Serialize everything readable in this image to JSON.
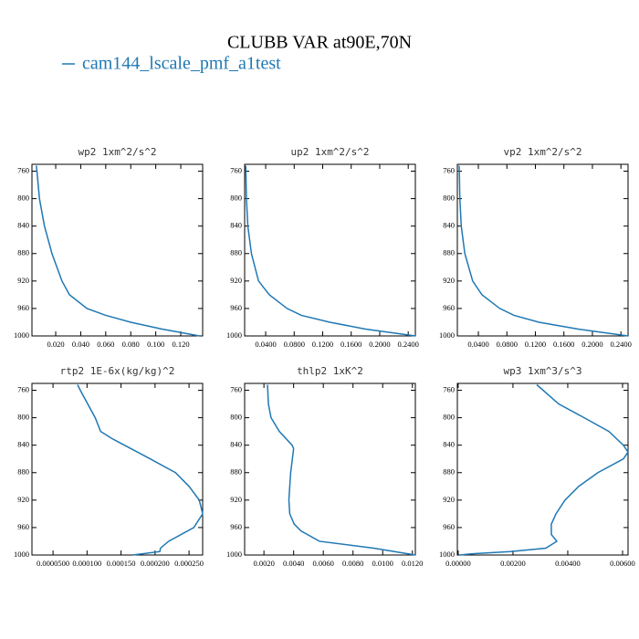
{
  "title": "CLUBB VAR at90E,70N",
  "chart_data": [
    {
      "type": "line",
      "title": "wp2  1xm^2/s^2",
      "xlim": [
        0.001,
        0.1375
      ],
      "ylim": [
        1000,
        750
      ],
      "xticks": [
        {
          "value": 0.02,
          "label": "0.020"
        },
        {
          "value": 0.04,
          "label": "0.040"
        },
        {
          "value": 0.06,
          "label": "0.060"
        },
        {
          "value": 0.08,
          "label": "0.080"
        },
        {
          "value": 0.1,
          "label": "0.100"
        },
        {
          "value": 0.12,
          "label": "0.120"
        }
      ],
      "yticks": [
        760,
        800,
        840,
        880,
        920,
        960,
        1000
      ],
      "y": [
        752,
        760,
        800,
        840,
        880,
        920,
        940,
        960,
        970,
        980,
        990,
        1000
      ],
      "series": [
        {
          "name": "cam144_lscale_pmf_a1test",
          "color": "#1f78b4",
          "values": [
            0.0045,
            0.005,
            0.007,
            0.011,
            0.017,
            0.025,
            0.031,
            0.045,
            0.06,
            0.08,
            0.105,
            0.135
          ]
        }
      ]
    },
    {
      "type": "line",
      "title": "up2  1xm^2/s^2",
      "xlim": [
        0.0105,
        0.25
      ],
      "ylim": [
        1000,
        750
      ],
      "xticks": [
        {
          "value": 0.04,
          "label": "0.0400"
        },
        {
          "value": 0.08,
          "label": "0.0800"
        },
        {
          "value": 0.12,
          "label": "0.1200"
        },
        {
          "value": 0.16,
          "label": "0.1600"
        },
        {
          "value": 0.2,
          "label": "0.2000"
        },
        {
          "value": 0.24,
          "label": "0.2400"
        }
      ],
      "yticks": [
        760,
        800,
        840,
        880,
        920,
        960,
        1000
      ],
      "y": [
        752,
        760,
        800,
        840,
        880,
        920,
        940,
        960,
        970,
        980,
        990,
        1000
      ],
      "series": [
        {
          "color": "#1f78b4",
          "values": [
            0.012,
            0.0122,
            0.013,
            0.015,
            0.02,
            0.03,
            0.045,
            0.07,
            0.09,
            0.13,
            0.18,
            0.25
          ]
        }
      ]
    },
    {
      "type": "line",
      "title": "vp2  1xm^2/s^2",
      "xlim": [
        0.0105,
        0.25
      ],
      "ylim": [
        1000,
        750
      ],
      "xticks": [
        {
          "value": 0.04,
          "label": "0.0400"
        },
        {
          "value": 0.08,
          "label": "0.0800"
        },
        {
          "value": 0.12,
          "label": "0.1200"
        },
        {
          "value": 0.16,
          "label": "0.1600"
        },
        {
          "value": 0.2,
          "label": "0.2000"
        },
        {
          "value": 0.24,
          "label": "0.2400"
        }
      ],
      "yticks": [
        760,
        800,
        840,
        880,
        920,
        960,
        1000
      ],
      "y": [
        752,
        760,
        800,
        840,
        880,
        920,
        940,
        960,
        970,
        980,
        990,
        1000
      ],
      "series": [
        {
          "color": "#1f78b4",
          "values": [
            0.013,
            0.0133,
            0.014,
            0.016,
            0.021,
            0.032,
            0.045,
            0.07,
            0.09,
            0.125,
            0.18,
            0.25
          ]
        }
      ]
    },
    {
      "type": "line",
      "title": "rtp2  1E-6x(kg/kg)^2",
      "xlim": [
        1.9e-05,
        0.00027
      ],
      "ylim": [
        1000,
        750
      ],
      "xticks": [
        {
          "value": 5e-05,
          "label": "0.0000500"
        },
        {
          "value": 0.0001,
          "label": "0.000100"
        },
        {
          "value": 0.00015,
          "label": "0.000150"
        },
        {
          "value": 0.0002,
          "label": "0.000200"
        },
        {
          "value": 0.00025,
          "label": "0.000250"
        }
      ],
      "yticks": [
        760,
        800,
        840,
        880,
        920,
        960,
        1000
      ],
      "y": [
        752,
        760,
        800,
        820,
        830,
        860,
        880,
        900,
        920,
        940,
        960,
        980,
        990,
        995,
        1000
      ],
      "series": [
        {
          "color": "#1f78b4",
          "values": [
            8.61e-05,
            9.01e-05,
            0.000112,
            0.00012,
            0.000136,
            0.000193,
            0.00023,
            0.00025,
            0.000265,
            0.00027,
            0.000257,
            0.00022,
            0.000208,
            0.000207,
            0.000167
          ]
        }
      ]
    },
    {
      "type": "line",
      "title": "thlp2  1xK^2",
      "xlim": [
        0.0007,
        0.0122
      ],
      "ylim": [
        1000,
        750
      ],
      "xticks": [
        {
          "value": 0.002,
          "label": "0.0020"
        },
        {
          "value": 0.004,
          "label": "0.0040"
        },
        {
          "value": 0.006,
          "label": "0.0060"
        },
        {
          "value": 0.008,
          "label": "0.0080"
        },
        {
          "value": 0.01,
          "label": "0.0100"
        },
        {
          "value": 0.012,
          "label": "0.0120"
        }
      ],
      "yticks": [
        760,
        800,
        840,
        880,
        920,
        960,
        1000
      ],
      "y": [
        752,
        780,
        800,
        820,
        840,
        845,
        880,
        920,
        940,
        955,
        965,
        980,
        990,
        1000
      ],
      "series": [
        {
          "color": "#1f78b4",
          "values": [
            0.00224,
            0.0023,
            0.00248,
            0.00304,
            0.0039,
            0.004,
            0.0038,
            0.00368,
            0.00374,
            0.00404,
            0.0045,
            0.00574,
            0.0094,
            0.0122
          ]
        }
      ]
    },
    {
      "type": "line",
      "title": "wp3  1xm^3/s^3",
      "xlim": [
        -3e-05,
        0.0062
      ],
      "ylim": [
        1000,
        750
      ],
      "xticks": [
        {
          "value": 0,
          "label": "0.00000"
        },
        {
          "value": 0.002,
          "label": "0.00200"
        },
        {
          "value": 0.004,
          "label": "0.00400"
        },
        {
          "value": 0.006,
          "label": "0.00600"
        }
      ],
      "yticks": [
        760,
        800,
        840,
        880,
        920,
        960,
        1000
      ],
      "y": [
        752,
        780,
        800,
        820,
        840,
        850,
        860,
        880,
        900,
        920,
        940,
        955,
        970,
        980,
        990,
        995,
        998,
        1000
      ],
      "series": [
        {
          "color": "#1f78b4",
          "values": [
            0.00287,
            0.00367,
            0.0046,
            0.0055,
            0.00603,
            0.0062,
            0.00603,
            0.0051,
            0.0044,
            0.0039,
            0.00357,
            0.0034,
            0.0034,
            0.0036,
            0.0032,
            0.0019,
            0.00059,
            4e-05
          ]
        }
      ]
    }
  ]
}
